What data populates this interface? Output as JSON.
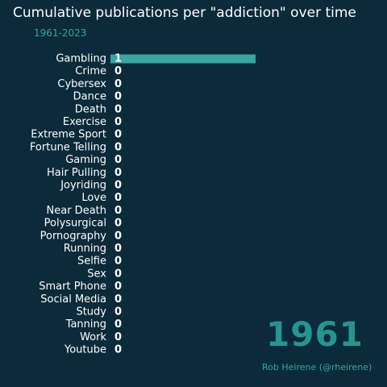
{
  "title": "Cumulative publications per \"addiction\" over time",
  "subtitle": "1961-2023",
  "year": "1961",
  "credit": "Rob Heirene (@rheirene)",
  "colors": {
    "background": "#0b2a3a",
    "text": "#ffffff",
    "accent": "#39a6a1",
    "year": "#26958f"
  },
  "chart_data": {
    "type": "bar",
    "orientation": "horizontal",
    "title": "Cumulative publications per \"addiction\" over time",
    "subtitle": "1961-2023",
    "categories": [
      "Gambling",
      "Crime",
      "Cybersex",
      "Dance",
      "Death",
      "Exercise",
      "Extreme Sport",
      "Fortune Telling",
      "Gaming",
      "Hair Pulling",
      "Joyriding",
      "Love",
      "Near Death",
      "Polysurgical",
      "Pornography",
      "Running",
      "Selfie",
      "Sex",
      "Smart Phone",
      "Social Media",
      "Study",
      "Tanning",
      "Work",
      "Youtube"
    ],
    "values": [
      1,
      0,
      0,
      0,
      0,
      0,
      0,
      0,
      0,
      0,
      0,
      0,
      0,
      0,
      0,
      0,
      0,
      0,
      0,
      0,
      0,
      0,
      0,
      0
    ],
    "grid": false,
    "legend": "none"
  }
}
